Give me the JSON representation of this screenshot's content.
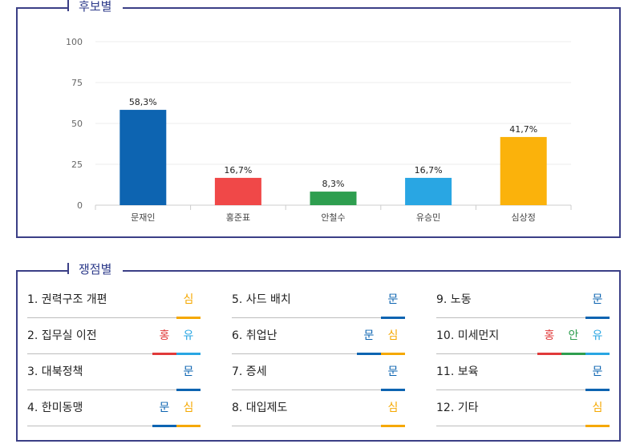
{
  "chart_panel": {
    "title": "후보별"
  },
  "issues_panel": {
    "title": "쟁점별"
  },
  "chart_data": {
    "type": "bar",
    "categories": [
      "문재인",
      "홍준표",
      "안철수",
      "유승민",
      "심상정"
    ],
    "values": [
      58.3,
      16.7,
      8.3,
      16.7,
      41.7
    ],
    "value_labels": [
      "58,3%",
      "16,7%",
      "8,3%",
      "16,7%",
      "41,7%"
    ],
    "colors": [
      "#0d64b1",
      "#f04848",
      "#2e9e4f",
      "#29a6e3",
      "#fbb20b"
    ],
    "ylim": [
      0,
      100
    ],
    "yticks": [
      0,
      25,
      50,
      75,
      100
    ],
    "grid": true,
    "title": "",
    "xlabel": "",
    "ylabel": ""
  },
  "candidates": {
    "문": {
      "color": "#0d64b1"
    },
    "홍": {
      "color": "#e03a3a"
    },
    "안": {
      "color": "#2e9e4f"
    },
    "유": {
      "color": "#29a6e3"
    },
    "심": {
      "color": "#f5a800"
    }
  },
  "issues": [
    {
      "label": "1. 권력구조 개편",
      "tags": [
        "심"
      ]
    },
    {
      "label": "2. 집무실 이전",
      "tags": [
        "홍",
        "유"
      ]
    },
    {
      "label": "3. 대북정책",
      "tags": [
        "문"
      ]
    },
    {
      "label": "4. 한미동맹",
      "tags": [
        "문",
        "심"
      ]
    },
    {
      "label": "5. 사드 배치",
      "tags": [
        "문"
      ]
    },
    {
      "label": "6. 취업난",
      "tags": [
        "문",
        "심"
      ]
    },
    {
      "label": "7. 증세",
      "tags": [
        "문"
      ]
    },
    {
      "label": "8. 대입제도",
      "tags": [
        "심"
      ]
    },
    {
      "label": "9. 노동",
      "tags": [
        "문"
      ]
    },
    {
      "label": "10. 미세먼지",
      "tags": [
        "홍",
        "안",
        "유"
      ]
    },
    {
      "label": "11. 보육",
      "tags": [
        "문"
      ]
    },
    {
      "label": "12. 기타",
      "tags": [
        "심"
      ]
    }
  ]
}
